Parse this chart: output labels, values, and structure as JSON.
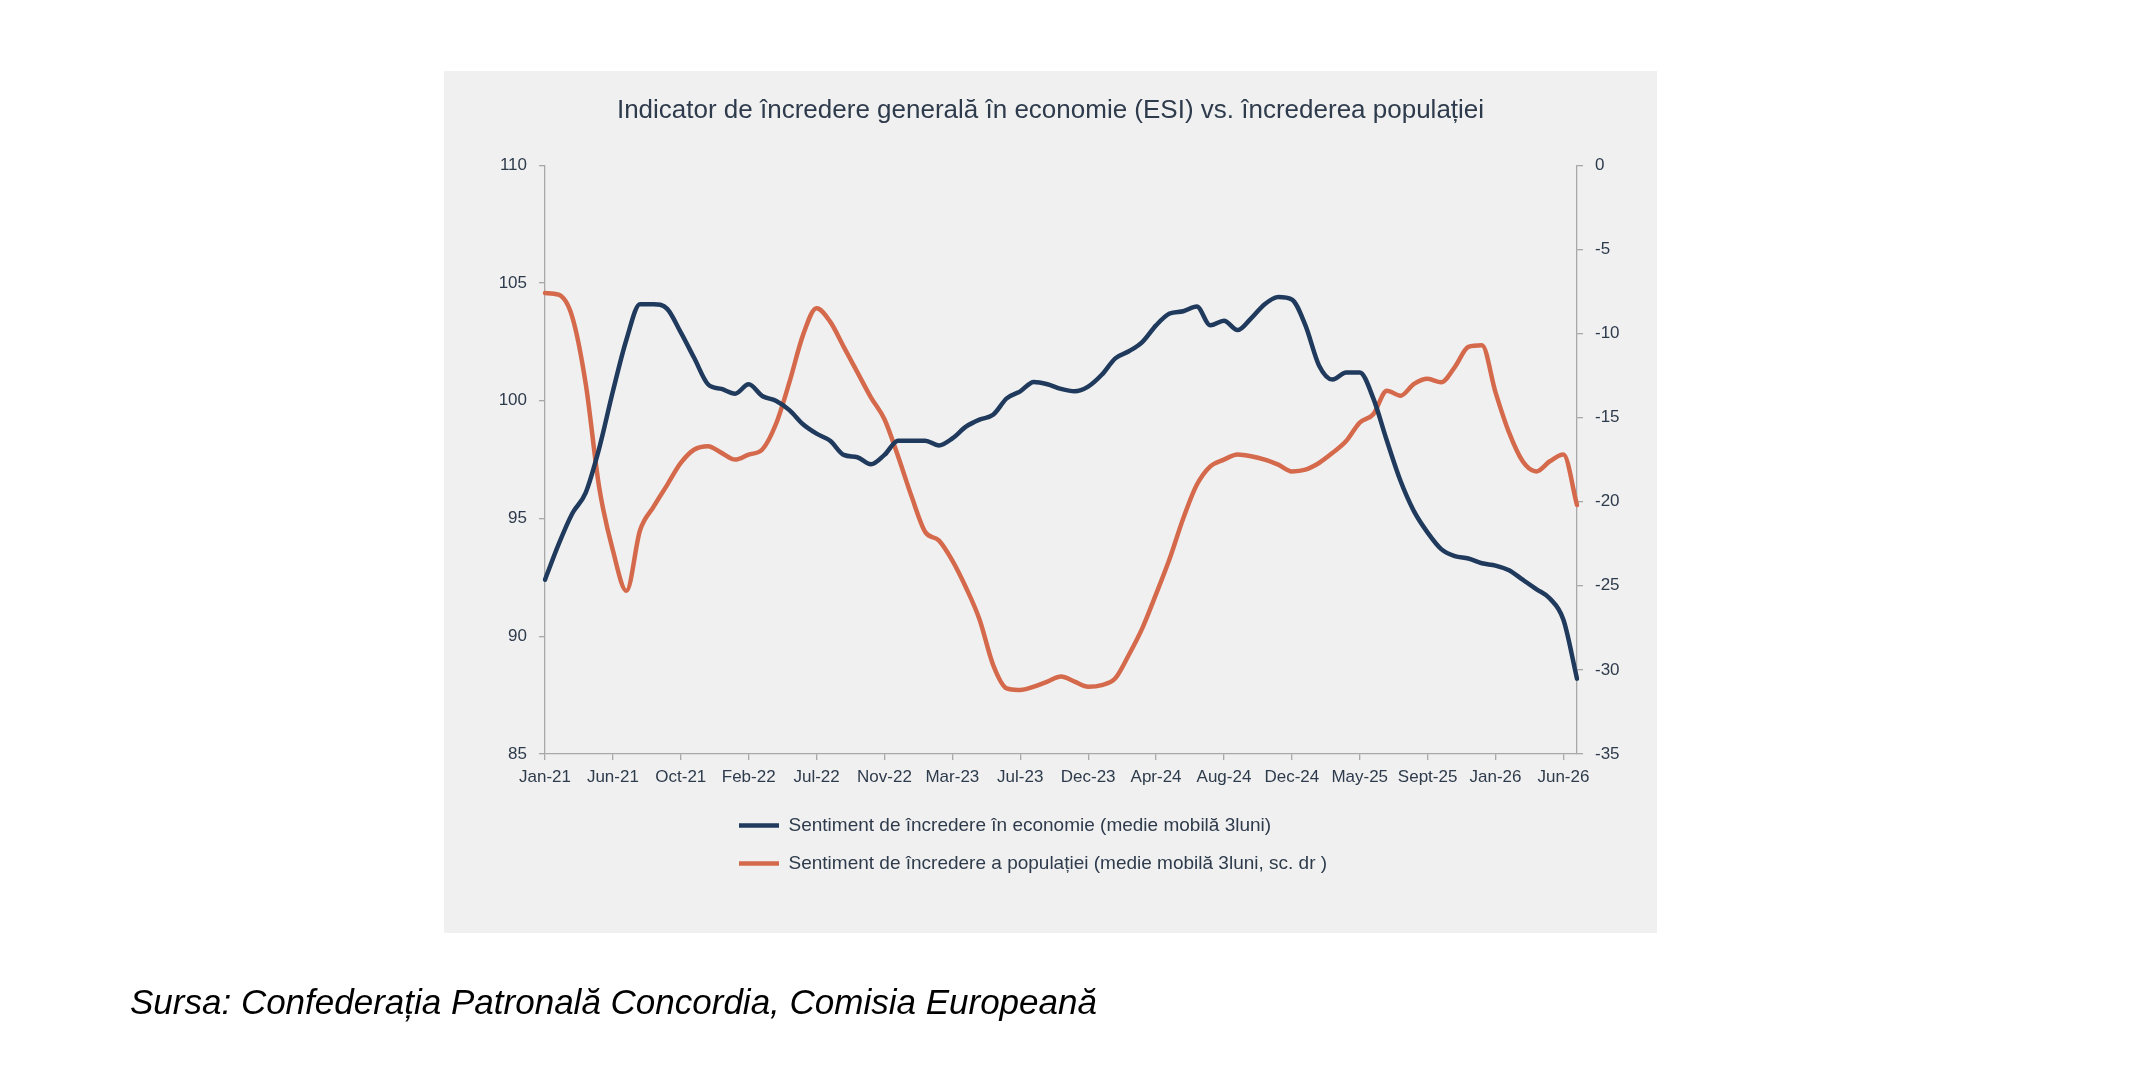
{
  "chart_data": {
    "type": "line",
    "title": "Indicator de încredere generală în economie (ESI) vs. încrederea populației",
    "categories": [
      "Jan-21",
      null,
      null,
      null,
      null,
      "Jun-21",
      null,
      null,
      null,
      null,
      "Oct-21",
      null,
      null,
      null,
      null,
      "Feb-22",
      null,
      null,
      null,
      null,
      "Jul-22",
      null,
      null,
      null,
      null,
      "Nov-22",
      null,
      null,
      null,
      null,
      "Mar-23",
      null,
      null,
      null,
      null,
      "Jul-23",
      null,
      null,
      null,
      null,
      "Dec-23",
      null,
      null,
      null,
      null,
      "Apr-24",
      null,
      null,
      null,
      null,
      "Aug-24",
      null,
      null,
      null,
      null,
      "Dec-24",
      null,
      null,
      null,
      null,
      "May-25",
      null,
      null,
      null,
      null,
      "Sept-25",
      null,
      null,
      null,
      null,
      "Jan-26",
      null,
      null,
      null,
      null,
      "Jun-26",
      null
    ],
    "series": [
      {
        "name": "Sentiment de încredere în economie (medie mobilă 3luni)",
        "color": "#1f3a5c",
        "values": [
          92.4,
          93.9,
          95.2,
          96.1,
          98.0,
          100.4,
          102.6,
          104.1,
          104.1,
          103.9,
          102.9,
          101.8,
          100.7,
          100.5,
          100.3,
          100.7,
          100.2,
          100.0,
          99.6,
          99.0,
          98.6,
          98.3,
          97.7,
          97.6,
          97.3,
          97.7,
          98.3,
          98.3,
          98.3,
          98.1,
          98.4,
          98.9,
          99.2,
          99.4,
          100.1,
          100.4,
          100.8,
          100.7,
          100.5,
          100.4,
          100.6,
          101.1,
          101.8,
          102.1,
          102.5,
          103.2,
          103.7,
          103.8,
          104.0,
          103.2,
          103.4,
          103.0,
          103.5,
          104.1,
          104.4,
          104.3,
          103.2,
          101.5,
          100.9,
          101.2,
          101.2,
          100.1,
          98.3,
          96.6,
          95.3,
          94.4,
          93.7,
          93.4,
          93.3,
          93.1,
          93.0,
          92.8,
          92.4,
          92.0,
          91.6,
          90.7,
          88.2
        ]
      },
      {
        "name": "Sentiment de încredere a populației (medie mobilă 3luni, sc. dr )",
        "color": "#d5694b",
        "axis": "y2",
        "values": [
          -7.6,
          -7.7,
          -9.0,
          -13.0,
          -19.2,
          -22.9,
          -25.3,
          -21.7,
          -20.3,
          -19.0,
          -17.7,
          -16.9,
          -16.7,
          -17.1,
          -17.5,
          -17.2,
          -16.9,
          -15.4,
          -12.9,
          -10.1,
          -8.5,
          -9.3,
          -10.8,
          -12.3,
          -13.8,
          -15.1,
          -17.3,
          -19.7,
          -21.8,
          -22.3,
          -23.5,
          -25.1,
          -27.0,
          -29.7,
          -31.1,
          -31.2,
          -31.0,
          -30.7,
          -30.4,
          -30.7,
          -31.0,
          -30.9,
          -30.5,
          -29.1,
          -27.5,
          -25.5,
          -23.4,
          -21.0,
          -19.0,
          -17.9,
          -17.5,
          -17.2,
          -17.3,
          -17.5,
          -17.8,
          -18.2,
          -18.1,
          -17.7,
          -17.1,
          -16.4,
          -15.3,
          -14.8,
          -13.4,
          -13.7,
          -13.0,
          -12.7,
          -12.9,
          -12.0,
          -10.8,
          -10.7,
          -13.5,
          -15.9,
          -17.6,
          -18.2,
          -17.6,
          -17.2,
          -20.2
        ]
      }
    ],
    "ylim": [
      85,
      110
    ],
    "yticks": [
      85,
      90,
      95,
      100,
      105,
      110
    ],
    "y2lim": [
      -35,
      0
    ],
    "y2ticks": [
      -35,
      -30,
      -25,
      -20,
      -15,
      -10,
      -5,
      0
    ],
    "grid": false,
    "legend": "bottom",
    "marker": "none",
    "line_style": "solid",
    "annotations": [
      "Sursa: Confederația Patronală Concordia, Comisia Europeană"
    ]
  }
}
